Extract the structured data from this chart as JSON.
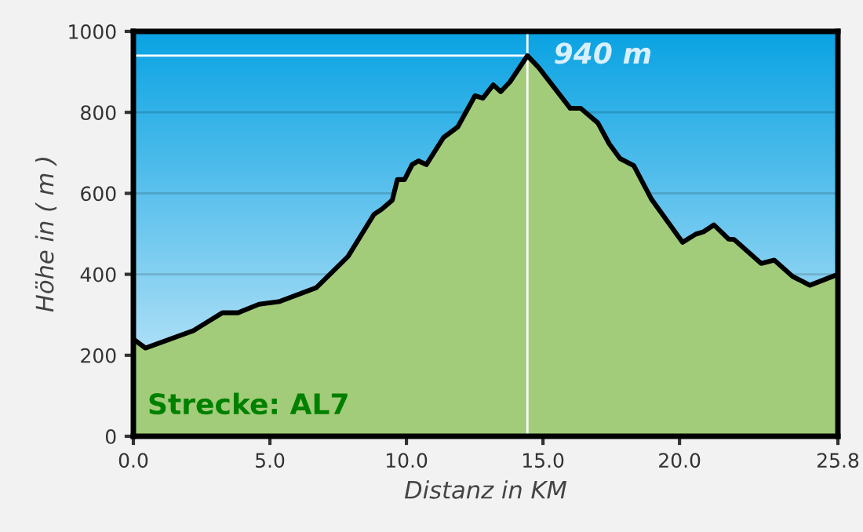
{
  "chart_data": {
    "type": "area",
    "xlabel": "Distanz in KM",
    "ylabel": "Höhe in ( m )",
    "x": [
      0,
      0.44,
      2.2,
      3.26,
      3.83,
      4.6,
      5.36,
      6.7,
      7.86,
      8.81,
      9.1,
      9.48,
      9.67,
      9.93,
      10.21,
      10.44,
      10.73,
      11.36,
      11.88,
      12.51,
      12.8,
      13.18,
      13.45,
      13.79,
      14.43,
      14.85,
      16.0,
      16.38,
      17.01,
      17.43,
      17.82,
      18.33,
      18.97,
      20.11,
      20.59,
      20.88,
      21.26,
      21.8,
      22.0,
      22.99,
      23.47,
      24.14,
      24.77,
      25.8
    ],
    "series": [
      {
        "color": "#a3cc7a",
        "values": [
          240,
          218,
          261,
          305,
          305,
          326,
          333,
          367,
          444,
          548,
          561,
          583,
          634,
          634,
          671,
          680,
          671,
          738,
          764,
          841,
          835,
          868,
          851,
          875,
          940,
          910,
          810,
          810,
          774,
          722,
          686,
          668,
          586,
          479,
          499,
          505,
          522,
          487,
          486,
          427,
          435,
          395,
          373,
          400
        ]
      }
    ],
    "xlim": [
      0,
      25.8
    ],
    "xticks": [
      {
        "value": 0,
        "label": "0.0"
      },
      {
        "value": 5,
        "label": "5.0"
      },
      {
        "value": 10,
        "label": "10.0"
      },
      {
        "value": 15,
        "label": "15.0"
      },
      {
        "value": 20,
        "label": "20.0"
      },
      {
        "value": 25.8,
        "label": "25.8"
      }
    ],
    "ylim": [
      0,
      1000
    ],
    "yticks": [
      0,
      200,
      400,
      600,
      800,
      1000
    ],
    "grid": "y",
    "ref_lines": [
      {
        "axis": "y",
        "value": 940,
        "color": "#ffffff"
      },
      {
        "axis": "x",
        "value": 14.43,
        "color": "#ffffff"
      }
    ],
    "annotations": [
      {
        "text": "940 m",
        "x": 14.43,
        "y": 940
      },
      "Strecke: AL7"
    ]
  }
}
